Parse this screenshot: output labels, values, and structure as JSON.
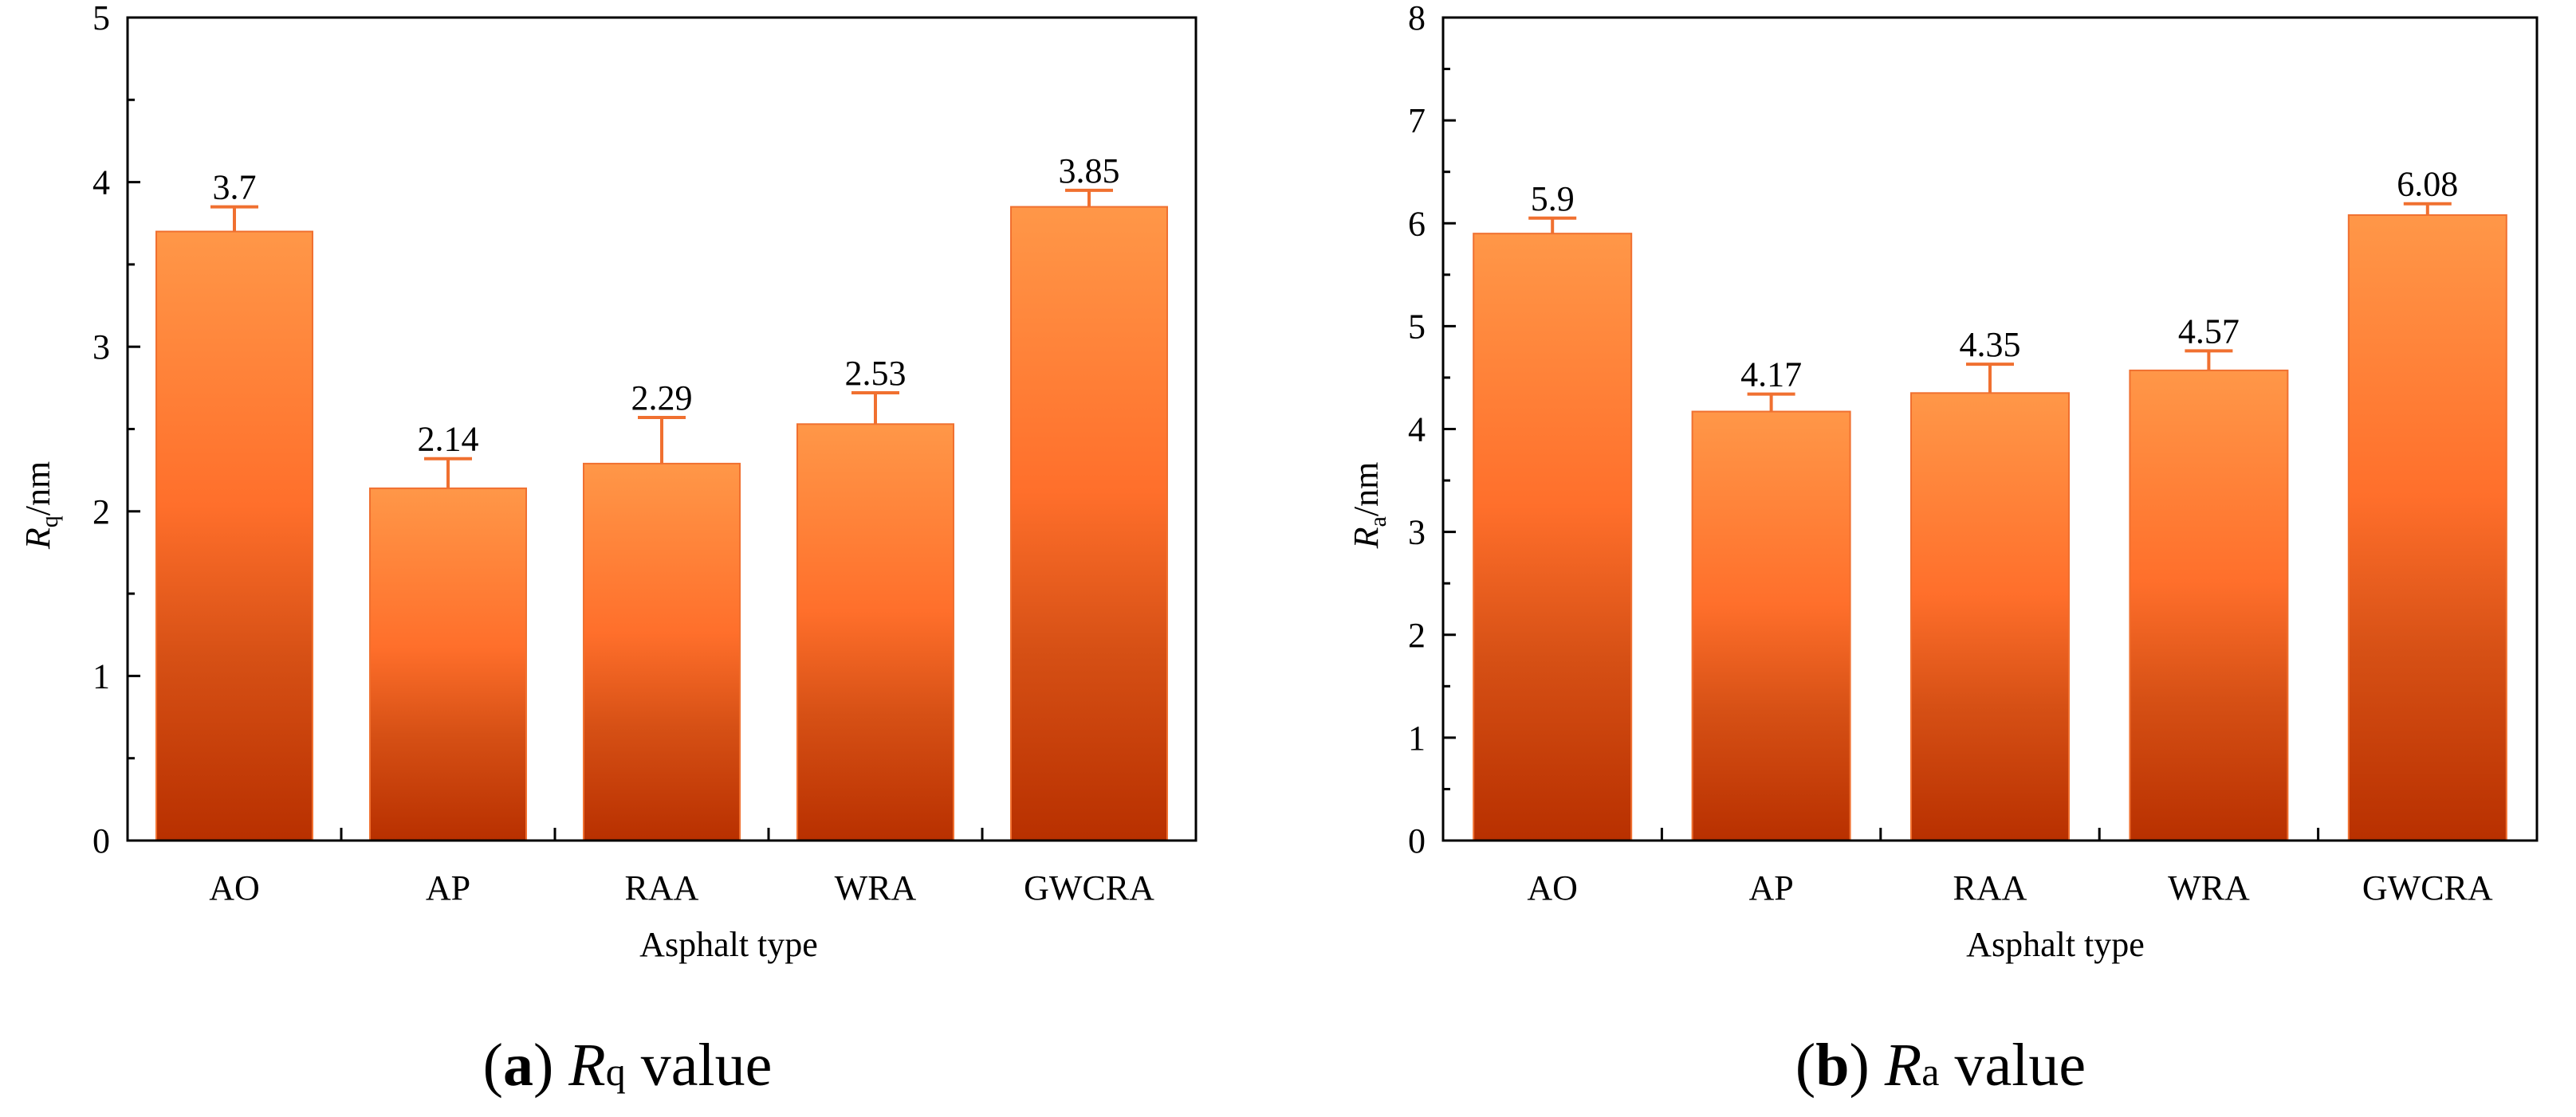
{
  "colors": {
    "bar_top": "#ff9748",
    "bar_mid": "#ff6f2b",
    "bar_dark": "#c84010",
    "bar_bottom": "#b83000",
    "error_bar": "#f07030",
    "axis": "#000000"
  },
  "chart_data": [
    {
      "type": "bar",
      "panel_label": "a",
      "caption_symbol": "R",
      "caption_sub": "q",
      "caption_suffix": " value",
      "ylabel_symbol": "R",
      "ylabel_sub": "q",
      "ylabel_unit": "/nm",
      "xlabel": "Asphalt type",
      "categories": [
        "AO",
        "AP",
        "RAA",
        "WRA",
        "GWCRA"
      ],
      "values": [
        3.7,
        2.14,
        2.29,
        2.53,
        3.85
      ],
      "value_labels": [
        "3.7",
        "2.14",
        "2.29",
        "2.53",
        "3.85"
      ],
      "errors": [
        0.15,
        0.18,
        0.28,
        0.19,
        0.1
      ],
      "ylim": [
        0,
        5
      ],
      "yticks": [
        0,
        1,
        2,
        3,
        4,
        5
      ],
      "ytick_labels": [
        "0",
        "1",
        "2",
        "3",
        "4",
        "5"
      ],
      "grid": false
    },
    {
      "type": "bar",
      "panel_label": "b",
      "caption_symbol": "R",
      "caption_sub": "a",
      "caption_suffix": " value",
      "ylabel_symbol": "R",
      "ylabel_sub": "a",
      "ylabel_unit": "/nm",
      "xlabel": "Asphalt type",
      "categories": [
        "AO",
        "AP",
        "RAA",
        "WRA",
        "GWCRA"
      ],
      "values": [
        5.9,
        4.17,
        4.35,
        4.57,
        6.08
      ],
      "value_labels": [
        "5.9",
        "4.17",
        "4.35",
        "4.57",
        "6.08"
      ],
      "errors": [
        0.15,
        0.17,
        0.28,
        0.19,
        0.11
      ],
      "ylim": [
        0,
        8
      ],
      "yticks": [
        0,
        1,
        2,
        3,
        4,
        5,
        6,
        7,
        8
      ],
      "ytick_labels": [
        "0",
        "1",
        "2",
        "3",
        "4",
        "5",
        "6",
        "7",
        "8"
      ],
      "grid": false
    }
  ]
}
